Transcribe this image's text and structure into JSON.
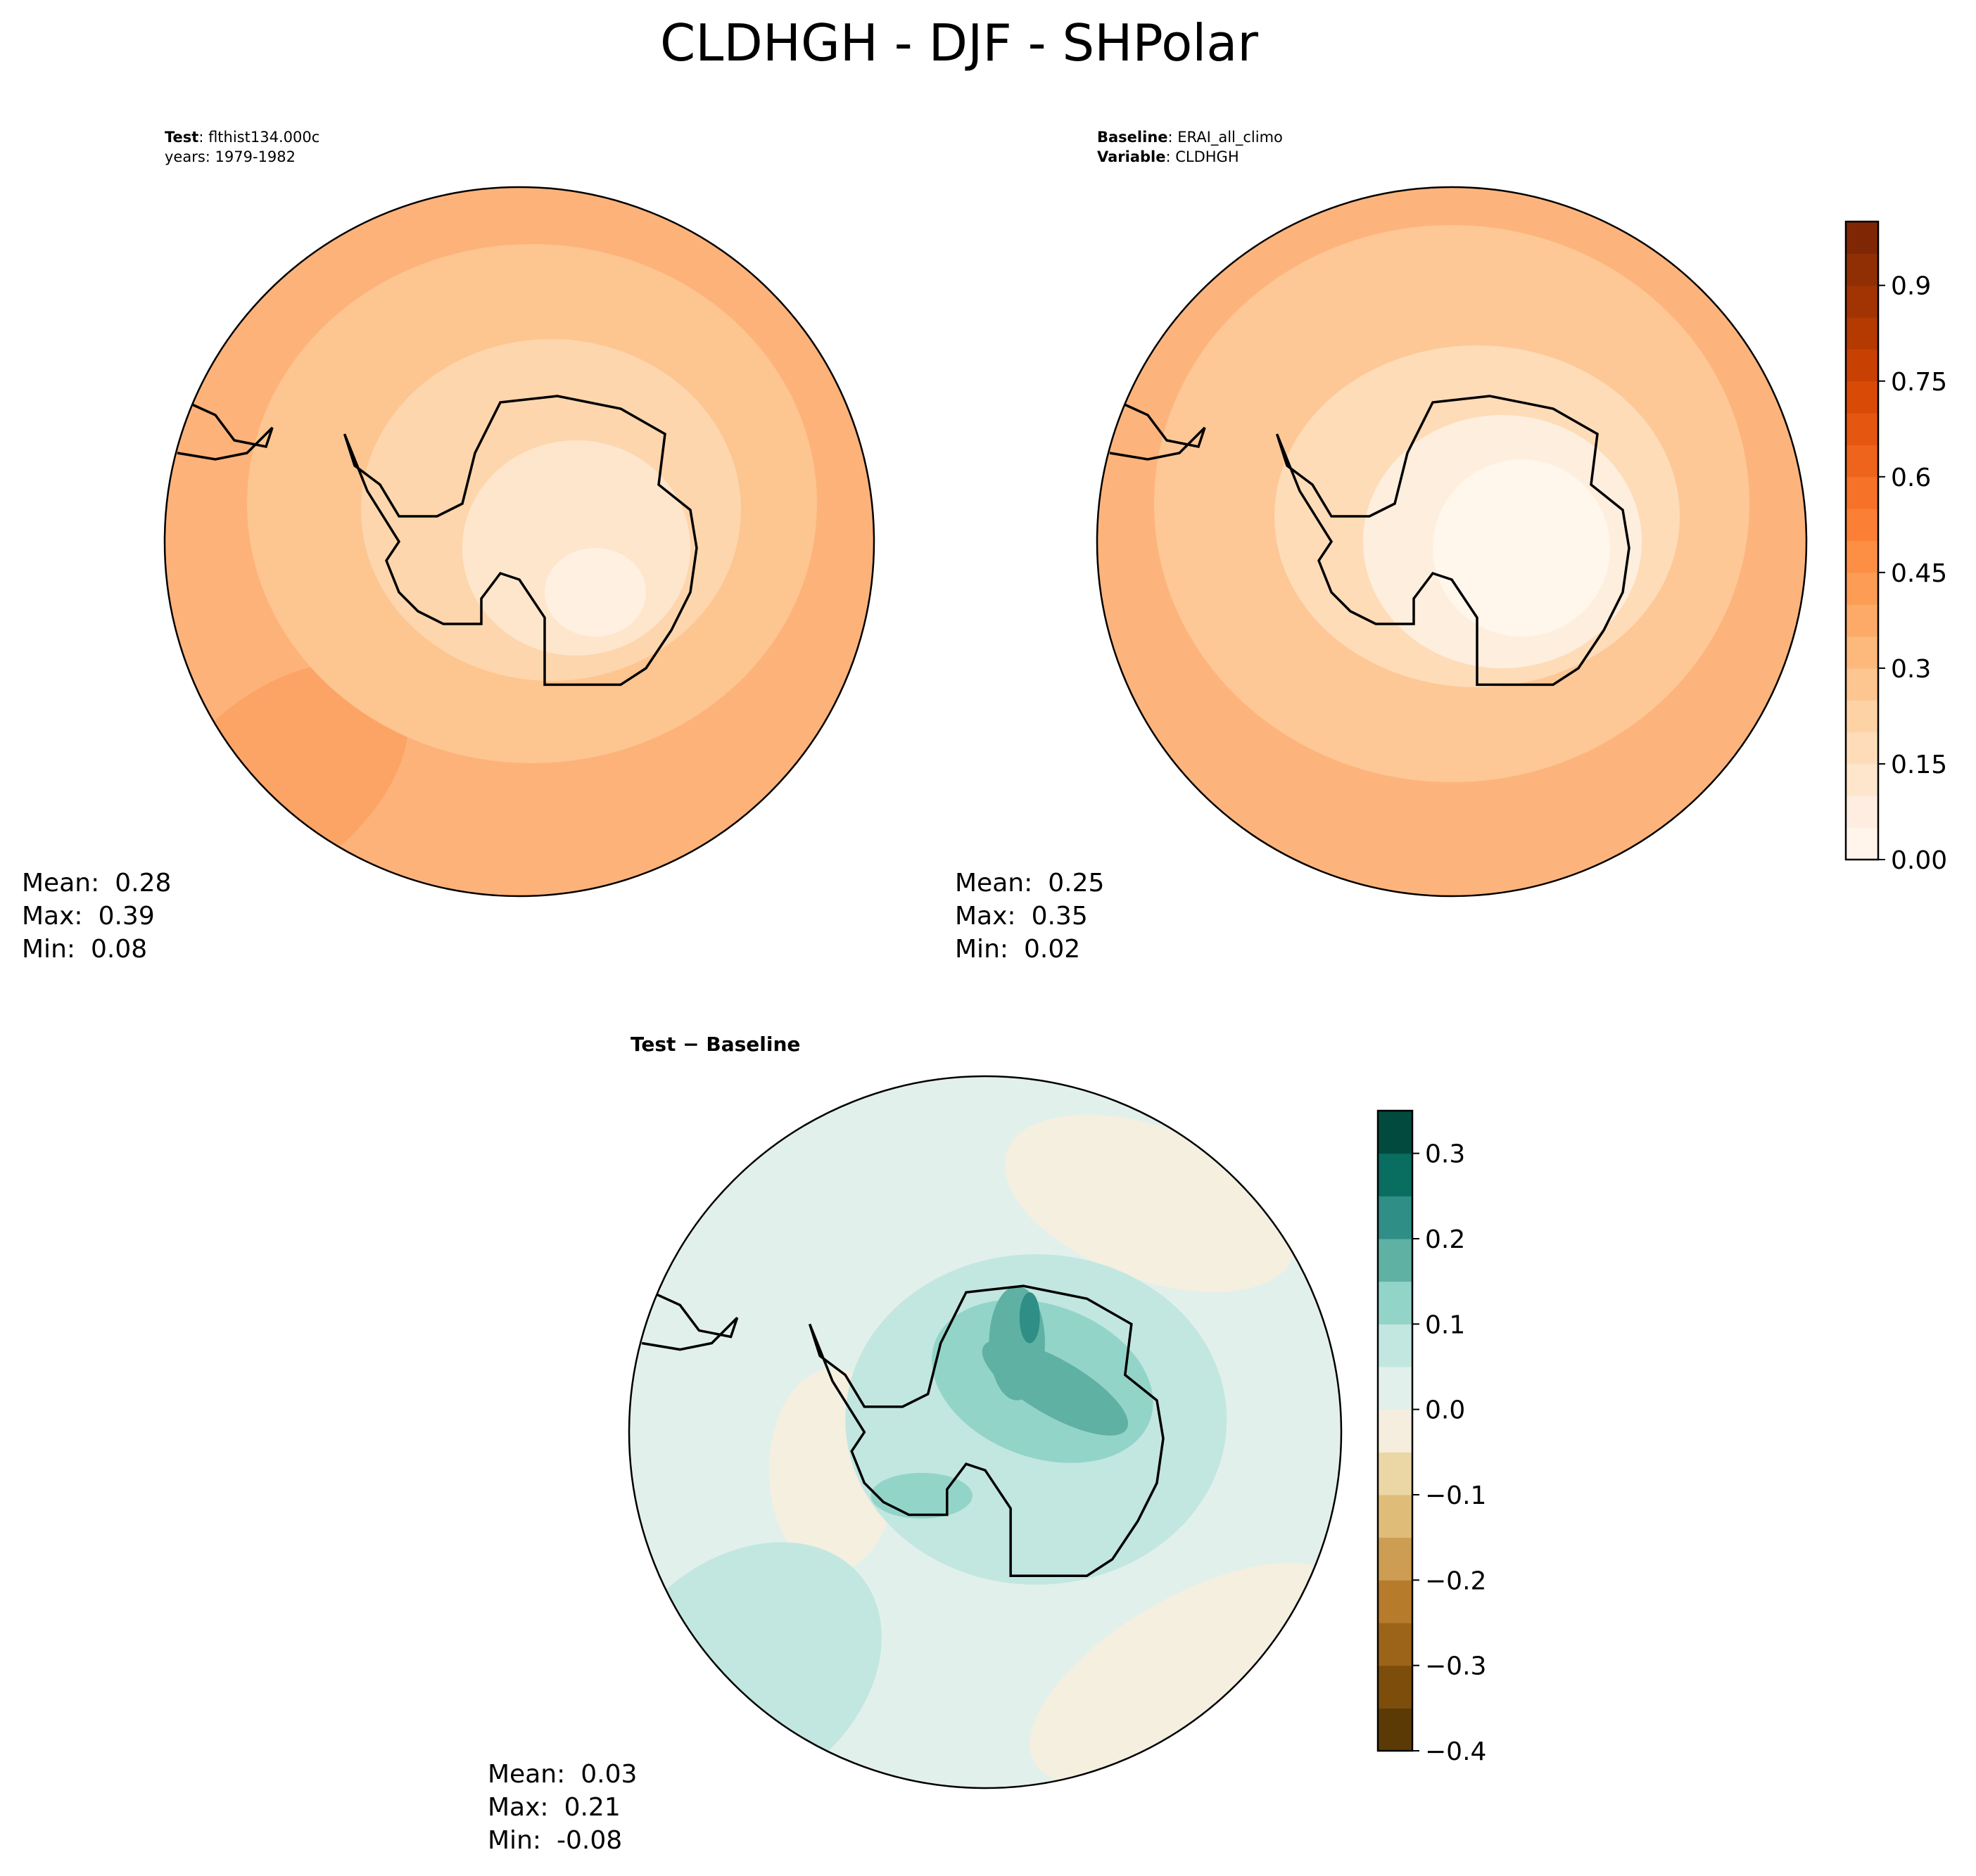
{
  "title": "CLDHGH - DJF - SHPolar",
  "chart_data": [
    {
      "type": "map",
      "header": [
        {
          "bold": "Test",
          "text": ": flthist134.000c"
        },
        {
          "text": "years: 1979-1982"
        }
      ],
      "stats": [
        {
          "label": "Mean:",
          "value": 0.28
        },
        {
          "label": "Max:",
          "value": 0.39
        },
        {
          "label": "Min:",
          "value": 0.08
        }
      ]
    },
    {
      "type": "map",
      "header": [
        {
          "bold": "Baseline",
          "text": ": ERAI_all_climo"
        },
        {
          "bold": "Variable",
          "text": ": CLDHGH"
        }
      ],
      "stats": [
        {
          "label": "Mean:",
          "value": 0.25
        },
        {
          "label": "Max:",
          "value": 0.35
        },
        {
          "label": "Min:",
          "value": 0.02
        }
      ],
      "colorbar": {
        "ylim": [
          0,
          1.0
        ],
        "yticks": [
          {
            "value": 0,
            "label": "0.00"
          },
          0.15,
          0.3,
          0.45,
          0.6,
          0.75,
          0.9
        ],
        "colors": [
          "#fff5eb",
          "#feede0",
          "#fee6cc",
          "#fedcb9",
          "#fdd2a5",
          "#fdc590",
          "#fdb87b",
          "#fdaa68",
          "#fd9c55",
          "#fd8f44",
          "#fb8035",
          "#f57228",
          "#ee641c",
          "#e55611",
          "#d94a07",
          "#c84103",
          "#b43a02",
          "#a23403",
          "#902f04",
          "#7f2704"
        ]
      }
    },
    {
      "type": "map",
      "header": [
        {
          "bold": "Test − Baseline"
        }
      ],
      "stats": [
        {
          "label": "Mean:",
          "value": 0.03
        },
        {
          "label": "Max:",
          "value": 0.21
        },
        {
          "label": "Min:",
          "value": -0.08
        }
      ],
      "colorbar": {
        "ylim": [
          -0.4,
          0.35
        ],
        "yticks": [
          {
            "value": -0.4,
            "label": "−0.4"
          },
          {
            "value": -0.3,
            "label": "−0.3"
          },
          {
            "value": -0.2,
            "label": "−0.2"
          },
          {
            "value": -0.1,
            "label": "−0.1"
          },
          {
            "value": 0,
            "label": "0.0"
          },
          0.1,
          0.2,
          0.3
        ],
        "colors": [
          "#5c3a06",
          "#7d4e0b",
          "#9c6418",
          "#b67b2b",
          "#cc9d52",
          "#dfbd79",
          "#ebd7a5",
          "#f5eedf",
          "#e2f0ec",
          "#c2e7e0",
          "#93d4c9",
          "#5fb1a4",
          "#2f8e85",
          "#096d60",
          "#024a3e"
        ]
      }
    }
  ]
}
